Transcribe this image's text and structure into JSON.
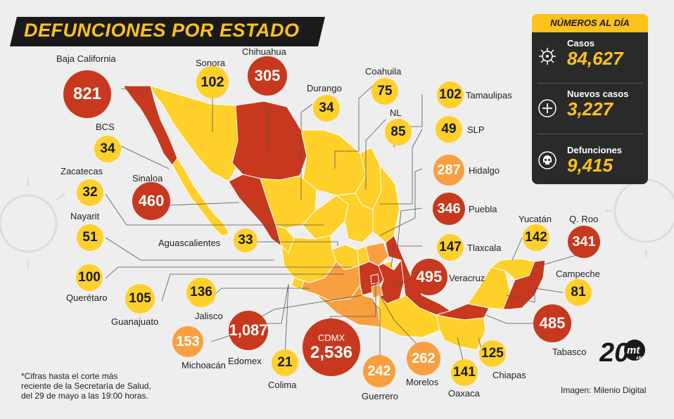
{
  "title": "DEFUNCIONES POR ESTADO",
  "colors": {
    "yellow": "#ffd02a",
    "orange": "#f8a040",
    "red": "#c8381e",
    "dark": "#2a2a2a",
    "accent": "#ffc21a"
  },
  "states": [
    {
      "name": "Baja California",
      "value": "821",
      "level": "red"
    },
    {
      "name": "Sonora",
      "value": "102",
      "level": "yellow"
    },
    {
      "name": "Chihuahua",
      "value": "305",
      "level": "red"
    },
    {
      "name": "Durango",
      "value": "34",
      "level": "yellow"
    },
    {
      "name": "Coahuila",
      "value": "75",
      "level": "yellow"
    },
    {
      "name": "Tamaulipas",
      "value": "102",
      "level": "yellow"
    },
    {
      "name": "NL",
      "value": "85",
      "level": "yellow"
    },
    {
      "name": "SLP",
      "value": "49",
      "level": "yellow"
    },
    {
      "name": "Hidalgo",
      "value": "287",
      "level": "orange"
    },
    {
      "name": "Puebla",
      "value": "346",
      "level": "red"
    },
    {
      "name": "BCS",
      "value": "34",
      "level": "yellow"
    },
    {
      "name": "Zacatecas",
      "value": "32",
      "level": "yellow"
    },
    {
      "name": "Sinaloa",
      "value": "460",
      "level": "red"
    },
    {
      "name": "Nayarit",
      "value": "51",
      "level": "yellow"
    },
    {
      "name": "Aguascalientes",
      "value": "33",
      "level": "yellow"
    },
    {
      "name": "Querétaro",
      "value": "100",
      "level": "yellow"
    },
    {
      "name": "Guanajuato",
      "value": "105",
      "level": "yellow"
    },
    {
      "name": "Jalisco",
      "value": "136",
      "level": "yellow"
    },
    {
      "name": "Tlaxcala",
      "value": "147",
      "level": "yellow"
    },
    {
      "name": "Veracruz",
      "value": "495",
      "level": "red"
    },
    {
      "name": "Yucatán",
      "value": "142",
      "level": "yellow"
    },
    {
      "name": "Q. Roo",
      "value": "341",
      "level": "red"
    },
    {
      "name": "Campeche",
      "value": "81",
      "level": "yellow"
    },
    {
      "name": "Tabasco",
      "value": "485",
      "level": "red"
    },
    {
      "name": "Michoacán",
      "value": "153",
      "level": "orange"
    },
    {
      "name": "Edomex",
      "value": "1,087",
      "level": "red"
    },
    {
      "name": "Colima",
      "value": "21",
      "level": "yellow"
    },
    {
      "name": "CDMX",
      "value": "2,536",
      "level": "red"
    },
    {
      "name": "Guerrero",
      "value": "242",
      "level": "orange"
    },
    {
      "name": "Morelos",
      "value": "262",
      "level": "orange"
    },
    {
      "name": "Oaxaca",
      "value": "141",
      "level": "yellow"
    },
    {
      "name": "Chiapas",
      "value": "125",
      "level": "yellow"
    }
  ],
  "panel": {
    "title": "NÚMEROS AL DÍA",
    "stats": [
      {
        "label": "Casos",
        "value": "84,627",
        "icon": "virus-icon"
      },
      {
        "label": "Nuevos casos",
        "value": "3,227",
        "icon": "plus-icon"
      },
      {
        "label": "Defunciones",
        "value": "9,415",
        "icon": "skull-icon"
      }
    ]
  },
  "footnote": [
    "*Cifras hasta el corte más",
    "reciente de la Secretaría de Salud,",
    "del 29 de mayo a las 19:00 horas."
  ],
  "credit": "Imagen: Milenio Digital",
  "logo": {
    "number": "20",
    "brand": "mt",
    "sub": "AÑOS"
  }
}
